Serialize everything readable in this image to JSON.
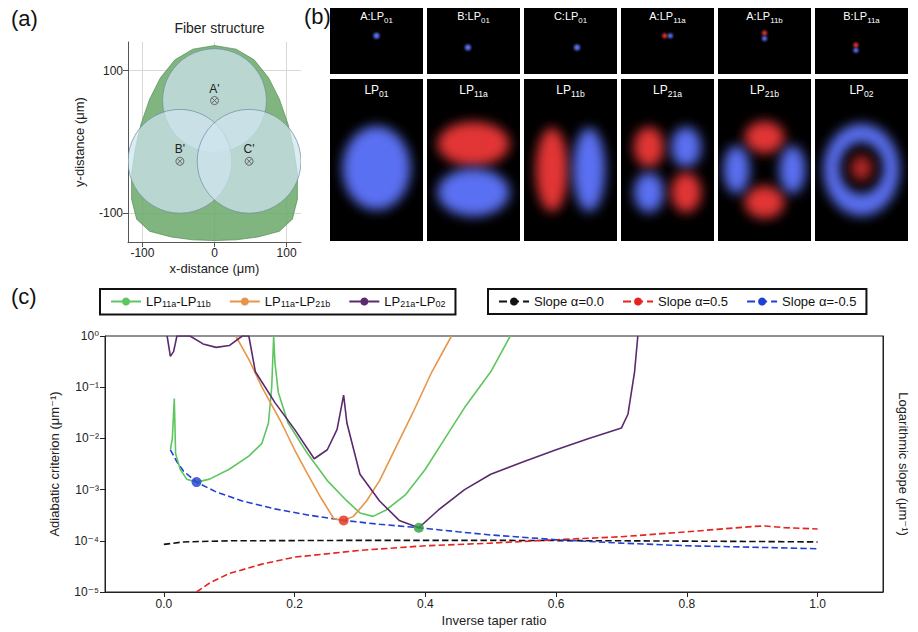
{
  "chart_data": [
    {
      "panel": "(a)",
      "type": "scatter",
      "title": "Fiber structure",
      "x_label": "x-distance (μm)",
      "y_label": "y-distance (μm)",
      "xlim": [
        -120,
        120
      ],
      "ylim": [
        -140,
        140
      ],
      "xticks": [
        -100,
        0,
        100
      ],
      "yticks": [
        -100,
        100
      ],
      "grid": true,
      "cladding": {
        "color": "#6aa86a",
        "points": [
          [
            0,
            135
          ],
          [
            30,
            130
          ],
          [
            55,
            115
          ],
          [
            75,
            90
          ],
          [
            90,
            60
          ],
          [
            102,
            25
          ],
          [
            110,
            -10
          ],
          [
            115,
            -45
          ],
          [
            115,
            -80
          ],
          [
            108,
            -108
          ],
          [
            90,
            -125
          ],
          [
            60,
            -133
          ],
          [
            30,
            -137
          ],
          [
            0,
            -138
          ],
          [
            -30,
            -137
          ],
          [
            -60,
            -133
          ],
          [
            -90,
            -125
          ],
          [
            -108,
            -108
          ],
          [
            -115,
            -80
          ],
          [
            -115,
            -45
          ],
          [
            -110,
            -10
          ],
          [
            -102,
            25
          ],
          [
            -90,
            60
          ],
          [
            -75,
            90
          ],
          [
            -55,
            115
          ],
          [
            -30,
            130
          ]
        ]
      },
      "circle_color": "#cfe4ef",
      "cores": [
        {
          "name": "A'",
          "x": 0,
          "y": 58,
          "radius": 72
        },
        {
          "name": "B'",
          "x": -48,
          "y": -27,
          "radius": 72
        },
        {
          "name": "C'",
          "x": 48,
          "y": -27,
          "radius": 72
        }
      ]
    },
    {
      "panel": "(c)",
      "type": "line",
      "log": "y",
      "grid": false,
      "legend": "top",
      "x_label": "Inverse taper ratio",
      "y_label": "Adiabatic criterion (μm⁻¹)",
      "y2_label": "Logarithmic slope (μm⁻¹)",
      "xlim": [
        -0.09,
        1.1
      ],
      "ylim": [
        1e-05,
        1
      ],
      "y2lim": [
        1e-05,
        1
      ],
      "xticks": [
        {
          "value": 0,
          "label": "0.0"
        },
        {
          "value": 0.2,
          "label": "0.2"
        },
        {
          "value": 0.4,
          "label": "0.4"
        },
        {
          "value": 0.6,
          "label": "0.6"
        },
        {
          "value": 0.8,
          "label": "0.8"
        },
        {
          "value": 1,
          "label": "1.0"
        }
      ],
      "yticks": [
        {
          "value": 1e-05,
          "label": "10⁻⁵"
        },
        {
          "value": 0.0001,
          "label": "10⁻⁴"
        },
        {
          "value": 0.001,
          "label": "10⁻³"
        },
        {
          "value": 0.01,
          "label": "10⁻²"
        },
        {
          "value": 0.1,
          "label": "10⁻¹"
        },
        {
          "value": 1,
          "label": "10⁰"
        }
      ],
      "series": [
        {
          "name": "LP11a-LP11b",
          "color": "#5ec65e",
          "line_style": "solid",
          "x": [
            0.01,
            0.013,
            0.016,
            0.018,
            0.025,
            0.035,
            0.05,
            0.07,
            0.1,
            0.13,
            0.15,
            0.16,
            0.165,
            0.168,
            0.17,
            0.175,
            0.19,
            0.22,
            0.25,
            0.28,
            0.3,
            0.32,
            0.34,
            0.37,
            0.4,
            0.43,
            0.46,
            0.5,
            0.53
          ],
          "values": [
            0.006,
            0.01,
            0.06,
            0.005,
            0.0025,
            0.0016,
            0.0014,
            0.0016,
            0.0025,
            0.0045,
            0.008,
            0.02,
            0.1,
            1,
            0.3,
            0.08,
            0.02,
            0.005,
            0.0015,
            0.0006,
            0.00035,
            0.0003,
            0.0004,
            0.0008,
            0.0025,
            0.01,
            0.04,
            0.2,
            1
          ]
        },
        {
          "name": "LP11a-LP21b",
          "color": "#e8954a",
          "line_style": "solid",
          "x": [
            0.11,
            0.13,
            0.15,
            0.18,
            0.2,
            0.22,
            0.24,
            0.26,
            0.275,
            0.29,
            0.31,
            0.33,
            0.35,
            0.38,
            0.41,
            0.44
          ],
          "values": [
            1,
            0.35,
            0.1,
            0.02,
            0.006,
            0.002,
            0.0007,
            0.00027,
            0.00025,
            0.0003,
            0.0006,
            0.0015,
            0.005,
            0.03,
            0.2,
            1
          ]
        },
        {
          "name": "LP21a-LP02",
          "color": "#5b2a6e",
          "line_style": "solid",
          "x": [
            0.005,
            0.01,
            0.015,
            0.02,
            0.04,
            0.06,
            0.08,
            0.1,
            0.12,
            0.13,
            0.14,
            0.17,
            0.2,
            0.23,
            0.25,
            0.265,
            0.275,
            0.28,
            0.3,
            0.33,
            0.36,
            0.39,
            0.42,
            0.46,
            0.5,
            0.55,
            0.6,
            0.65,
            0.7,
            0.71,
            0.72,
            0.725
          ],
          "values": [
            1,
            0.4,
            0.5,
            1,
            1,
            0.7,
            0.6,
            0.65,
            1,
            1,
            0.2,
            0.05,
            0.015,
            0.004,
            0.006,
            0.015,
            0.07,
            0.02,
            0.002,
            0.0006,
            0.00025,
            0.00018,
            0.0004,
            0.001,
            0.002,
            0.0035,
            0.006,
            0.01,
            0.016,
            0.03,
            0.2,
            1
          ]
        },
        {
          "name": "Slope α=0.0",
          "color": "#111111",
          "line_style": "dashed",
          "axis": "y2",
          "x": [
            0.0,
            0.03,
            0.1,
            0.3,
            0.5,
            0.7,
            0.9,
            1.0
          ],
          "values": [
            8.5e-05,
            9.5e-05,
            0.0001,
            0.000102,
            0.000102,
            0.0001,
            9.7e-05,
            9.5e-05
          ]
        },
        {
          "name": "Slope α=0.5",
          "color": "#e8231e",
          "line_style": "dashed",
          "axis": "y2",
          "x": [
            0.05,
            0.07,
            0.1,
            0.15,
            0.2,
            0.3,
            0.4,
            0.5,
            0.6,
            0.7,
            0.8,
            0.9,
            0.92,
            0.95,
            1.0
          ],
          "values": [
            1e-05,
            1.5e-05,
            2.3e-05,
            3.5e-05,
            4.8e-05,
            6.5e-05,
            8e-05,
            9e-05,
            0.000105,
            0.00012,
            0.00015,
            0.00019,
            0.000195,
            0.00018,
            0.00017
          ]
        },
        {
          "name": "Slope α=-0.5",
          "color": "#1f3fd6",
          "line_style": "dashed",
          "axis": "y2",
          "x": [
            0.01,
            0.02,
            0.03,
            0.05,
            0.08,
            0.12,
            0.17,
            0.22,
            0.275,
            0.33,
            0.39,
            0.45,
            0.5,
            0.6,
            0.7,
            0.8,
            0.9,
            1.0
          ],
          "values": [
            0.006,
            0.0035,
            0.0023,
            0.0014,
            0.0009,
            0.0006,
            0.00042,
            0.00032,
            0.00025,
            0.00021,
            0.00018,
            0.00015,
            0.00013,
            0.000105,
            9e-05,
            8e-05,
            7.5e-05,
            7e-05
          ]
        }
      ],
      "points": [
        {
          "x": 0.05,
          "y": 0.0014,
          "color": "#1f3fd6"
        },
        {
          "x": 0.275,
          "y": 0.00025,
          "color": "#e0301e"
        },
        {
          "x": 0.39,
          "y": 0.00018,
          "color": "#2e9e3e"
        }
      ]
    }
  ],
  "mode_images": {
    "panel": "(b)",
    "rows": [
      [
        "A:LP01",
        "B:LP01",
        "C:LP01",
        "A:LP11a",
        "A:LP11b",
        "B:LP11a"
      ],
      [
        "LP01",
        "LP11a",
        "LP11b",
        "LP21a",
        "LP21b",
        "LP02"
      ]
    ]
  }
}
